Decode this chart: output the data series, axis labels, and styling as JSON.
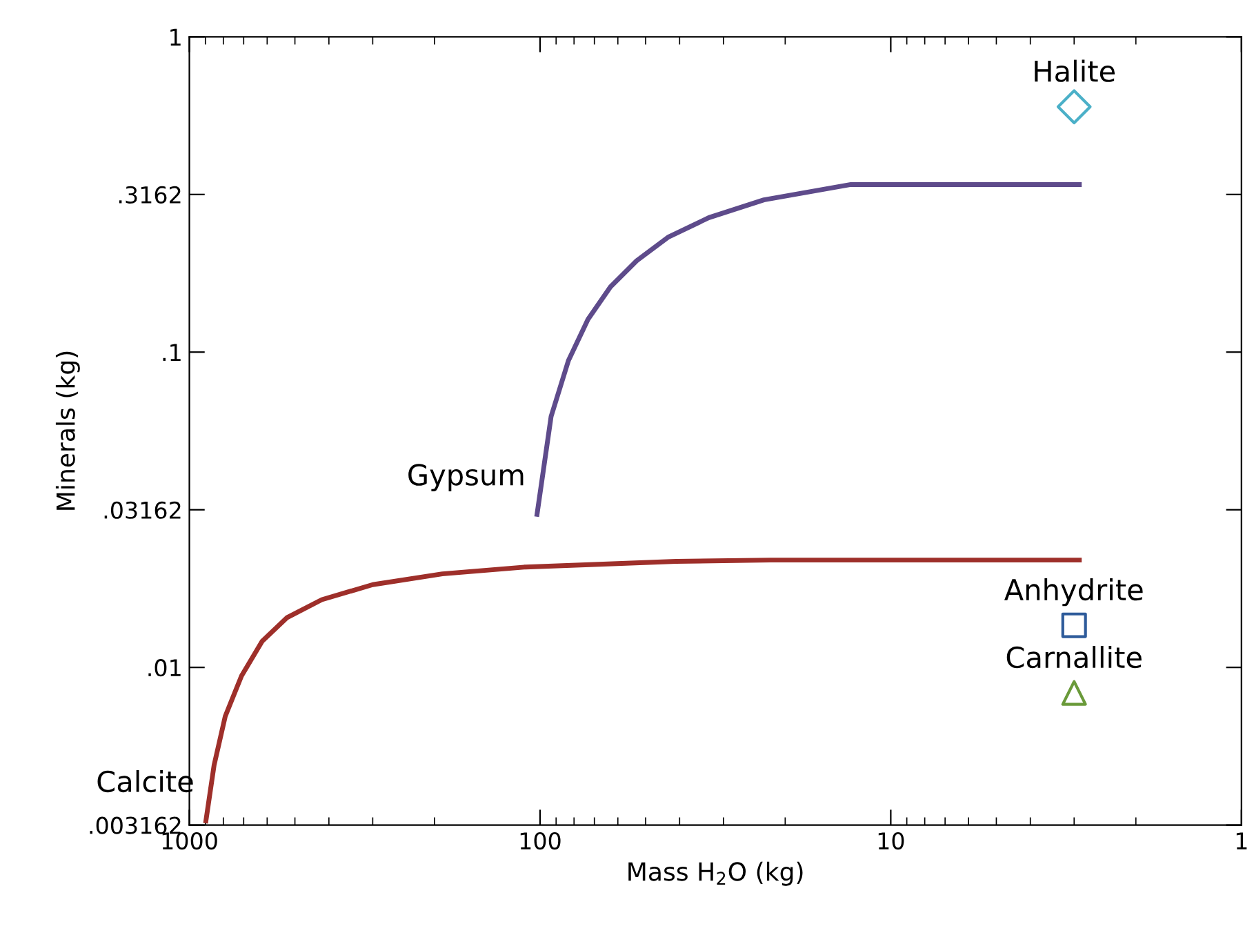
{
  "chart_data": {
    "type": "line",
    "xlabel": "Mass H$_{2}$O (kg)",
    "ylabel": "Minerals (kg)",
    "log": "xy",
    "legend": false,
    "grid": false,
    "xlim": [
      1000,
      1
    ],
    "xticks": [
      1000,
      100,
      10,
      1
    ],
    "ylim": [
      0.003162,
      1
    ],
    "yticks": [
      {
        "value": 0.003162,
        "label": ".003162"
      },
      {
        "value": 0.01,
        "label": ".01"
      },
      {
        "value": 0.03162,
        "label": ".03162"
      },
      {
        "value": 0.1,
        "label": ".1"
      },
      {
        "value": 0.3162,
        "label": ".3162"
      },
      1
    ],
    "series": [
      {
        "name": "Gypsum",
        "color": "#5e4b8b",
        "x": [
          102,
          93,
          83,
          73,
          63,
          53,
          43,
          33,
          23,
          13,
          2.9
        ],
        "values": [
          0.0306,
          0.0625,
          0.094,
          0.127,
          0.161,
          0.195,
          0.232,
          0.267,
          0.304,
          0.34,
          0.34
        ]
      },
      {
        "name": "Calcite",
        "color": "#9e2f2a",
        "x": [
          897,
          850,
          790,
          710,
          620,
          526,
          419,
          300,
          190,
          111,
          70,
          41,
          22,
          2.9
        ],
        "values": [
          0.00326,
          0.0049,
          0.007,
          0.0094,
          0.0121,
          0.0144,
          0.0164,
          0.0183,
          0.0198,
          0.0208,
          0.0212,
          0.0217,
          0.0219,
          0.0219
        ]
      },
      {
        "name": "Halite",
        "type": "scatter",
        "marker": "diamond",
        "color": "#4bb0c8",
        "x": [
          3
        ],
        "values": [
          0.6
        ]
      },
      {
        "name": "Anhydrite",
        "type": "scatter",
        "marker": "square",
        "color": "#2e5b9a",
        "x": [
          3
        ],
        "values": [
          0.0136
        ]
      },
      {
        "name": "Carnallite",
        "type": "scatter",
        "marker": "triangle",
        "color": "#6a9a3a",
        "x": [
          3
        ],
        "values": [
          0.0083
        ]
      }
    ]
  }
}
